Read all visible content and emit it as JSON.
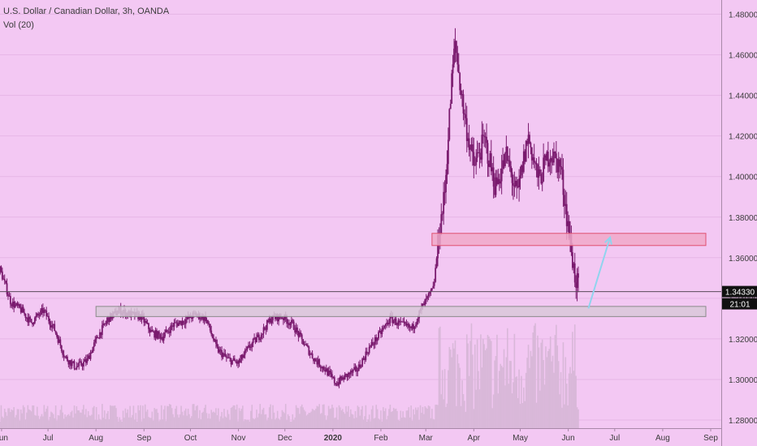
{
  "legend": {
    "symbol": "U.S. Dollar / Canadian Dollar, 3h, OANDA",
    "indicator": "Vol (20)"
  },
  "colors": {
    "background": "#f3c8f3",
    "candle": "#7a1a6e",
    "volume": "#d9b8d9",
    "grid": "#e6b6e6",
    "price_line": "#5a4a5a",
    "resistance_zone": "#f0a8c8",
    "resistance_border": "#e05070",
    "support_zone": "#d8c8d8",
    "support_border": "#8a8a8a",
    "arrow": "#90d4ee",
    "price_tag": "#111111",
    "text": "#3b3b3b"
  },
  "chart_data": {
    "type": "candlestick",
    "x_axis_labels": [
      "Jun",
      "Jul",
      "Aug",
      "Sep",
      "Oct",
      "Nov",
      "Dec",
      "2020",
      "Feb",
      "Mar",
      "Apr",
      "May",
      "Jun",
      "Jul",
      "Aug",
      "Sep"
    ],
    "y_axis_labels": [
      "1.48000",
      "1.46000",
      "1.44000",
      "1.42000",
      "1.40000",
      "1.38000",
      "1.36000",
      "1.34000",
      "1.32000",
      "1.30000",
      "1.28000"
    ],
    "ylim": [
      1.276,
      1.487
    ],
    "last_price": "1.34330",
    "countdown": "21:01",
    "monthly_path": [
      [
        "2019-06-01",
        1.352
      ],
      [
        "2019-06-07",
        1.338
      ],
      [
        "2019-06-14",
        1.334
      ],
      [
        "2019-06-20",
        1.328
      ],
      [
        "2019-06-28",
        1.334
      ],
      [
        "2019-07-05",
        1.325
      ],
      [
        "2019-07-12",
        1.311
      ],
      [
        "2019-07-19",
        1.306
      ],
      [
        "2019-07-26",
        1.309
      ],
      [
        "2019-08-02",
        1.321
      ],
      [
        "2019-08-09",
        1.33
      ],
      [
        "2019-08-16",
        1.334
      ],
      [
        "2019-08-23",
        1.332
      ],
      [
        "2019-08-30",
        1.331
      ],
      [
        "2019-09-06",
        1.323
      ],
      [
        "2019-09-13",
        1.321
      ],
      [
        "2019-09-20",
        1.327
      ],
      [
        "2019-09-27",
        1.329
      ],
      [
        "2019-10-04",
        1.332
      ],
      [
        "2019-10-11",
        1.33
      ],
      [
        "2019-10-18",
        1.315
      ],
      [
        "2019-10-25",
        1.31
      ],
      [
        "2019-11-01",
        1.308
      ],
      [
        "2019-11-08",
        1.316
      ],
      [
        "2019-11-15",
        1.322
      ],
      [
        "2019-11-22",
        1.33
      ],
      [
        "2019-11-29",
        1.331
      ],
      [
        "2019-12-06",
        1.327
      ],
      [
        "2019-12-13",
        1.318
      ],
      [
        "2019-12-20",
        1.31
      ],
      [
        "2019-12-27",
        1.305
      ],
      [
        "2020-01-03",
        1.298
      ],
      [
        "2020-01-10",
        1.302
      ],
      [
        "2020-01-17",
        1.305
      ],
      [
        "2020-01-24",
        1.315
      ],
      [
        "2020-01-31",
        1.322
      ],
      [
        "2020-02-07",
        1.33
      ],
      [
        "2020-02-14",
        1.327
      ],
      [
        "2020-02-21",
        1.325
      ],
      [
        "2020-02-28",
        1.336
      ],
      [
        "2020-03-06",
        1.345
      ],
      [
        "2020-03-10",
        1.375
      ],
      [
        "2020-03-13",
        1.39
      ],
      [
        "2020-03-18",
        1.45
      ],
      [
        "2020-03-20",
        1.466
      ],
      [
        "2020-03-24",
        1.44
      ],
      [
        "2020-03-27",
        1.425
      ],
      [
        "2020-04-01",
        1.405
      ],
      [
        "2020-04-08",
        1.418
      ],
      [
        "2020-04-15",
        1.395
      ],
      [
        "2020-04-22",
        1.41
      ],
      [
        "2020-04-29",
        1.39
      ],
      [
        "2020-05-06",
        1.42
      ],
      [
        "2020-05-13",
        1.398
      ],
      [
        "2020-05-20",
        1.412
      ],
      [
        "2020-05-27",
        1.405
      ],
      [
        "2020-06-01",
        1.375
      ],
      [
        "2020-06-05",
        1.352
      ],
      [
        "2020-06-08",
        1.343
      ]
    ],
    "zones": [
      {
        "type": "resistance",
        "y_low": 1.366,
        "y_high": 1.372,
        "x_start": "2020-03-05",
        "x_end": "2020-09-01"
      },
      {
        "type": "support",
        "y_low": 1.331,
        "y_high": 1.336,
        "x_start": "2019-08-01",
        "x_end": "2020-09-01"
      }
    ],
    "projection_arrow": {
      "from": [
        "2020-06-14",
        1.335
      ],
      "to": [
        "2020-06-28",
        1.37
      ]
    }
  }
}
